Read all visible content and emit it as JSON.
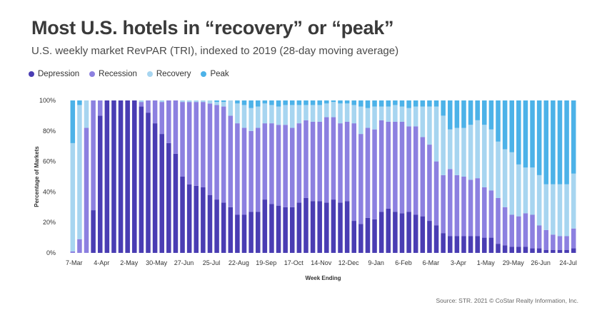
{
  "header": {
    "title": "Most U.S. hotels in “recovery” or “peak”",
    "subtitle": "U.S. weekly market RevPAR (TRI), indexed to 2019 (28-day moving average)"
  },
  "footer": {
    "source": "Source: STR. 2021 © CoStar Realty Information, Inc."
  },
  "colors": {
    "Depression": "#4a3db3",
    "Recession": "#8c80e0",
    "Recovery": "#a7d5f0",
    "Peak": "#4cb2e8"
  },
  "chart_data": {
    "type": "bar",
    "stacked": true,
    "title": "Most U.S. hotels in “recovery” or “peak”",
    "subtitle": "U.S. weekly market RevPAR (TRI), indexed to 2019 (28-day moving average)",
    "xlabel": "Week Ending",
    "ylabel": "Percentage of Markets",
    "ylim": [
      0,
      100
    ],
    "yticks": [
      "0%",
      "20%",
      "40%",
      "60%",
      "80%",
      "100%"
    ],
    "legend_position": "top-left",
    "grid": false,
    "x_tick_labels": [
      "7-Mar",
      "4-Apr",
      "2-May",
      "30-May",
      "27-Jun",
      "25-Jul",
      "22-Aug",
      "19-Sep",
      "17-Oct",
      "14-Nov",
      "12-Dec",
      "9-Jan",
      "6-Feb",
      "6-Mar",
      "3-Apr",
      "1-May",
      "29-May",
      "26-Jun",
      "24-Jul"
    ],
    "x_tick_every": 4,
    "series": [
      {
        "name": "Depression",
        "values": [
          0,
          0,
          0,
          28,
          90,
          100,
          100,
          100,
          100,
          100,
          96,
          92,
          85,
          78,
          72,
          65,
          50,
          45,
          44,
          43,
          38,
          35,
          33,
          30,
          25,
          25,
          27,
          27,
          35,
          32,
          31,
          30,
          30,
          33,
          36,
          34,
          34,
          33,
          35,
          33,
          34,
          21,
          19,
          23,
          22,
          27,
          29,
          27,
          26,
          27,
          25,
          24,
          21,
          18,
          13,
          11,
          11,
          11,
          11,
          11,
          10,
          10,
          6,
          5,
          4,
          4,
          4,
          3,
          3,
          2,
          2,
          2,
          2,
          3
        ],
        "cumulative": [
          0,
          0,
          0,
          28,
          90,
          100,
          100,
          100,
          100,
          100,
          96,
          92,
          85,
          78,
          72,
          65,
          50,
          45,
          44,
          43,
          38,
          35,
          33,
          30,
          25,
          25,
          27,
          27,
          35,
          32,
          31,
          30,
          30,
          33,
          36,
          34,
          34,
          33,
          35,
          33,
          34,
          21,
          19,
          23,
          22,
          27,
          29,
          27,
          26,
          27,
          25,
          24,
          21,
          18,
          13,
          11,
          11,
          11,
          11,
          11,
          10,
          10,
          6,
          5,
          4,
          4,
          4,
          3,
          3,
          2,
          2,
          2,
          2,
          3
        ]
      },
      {
        "name": "Recession",
        "values": [
          1,
          9,
          82,
          72,
          10,
          0,
          0,
          0,
          0,
          0,
          3,
          8,
          15,
          21,
          28,
          35,
          49,
          54,
          55,
          56,
          60,
          62,
          63,
          60,
          60,
          57,
          53,
          55,
          50,
          53,
          53,
          54,
          52,
          52,
          51,
          52,
          52,
          56,
          54,
          52,
          52,
          64,
          59,
          59,
          59,
          60,
          57,
          59,
          60,
          56,
          58,
          52,
          50,
          42,
          38,
          44,
          40,
          39,
          37,
          38,
          33,
          31,
          30,
          25,
          21,
          20,
          22,
          22,
          15,
          13,
          10,
          9,
          9,
          13
        ],
        "cumulative": [
          1,
          9,
          82,
          100,
          100,
          100,
          100,
          100,
          100,
          100,
          99,
          100,
          100,
          99,
          100,
          100,
          99,
          99,
          99,
          99,
          98,
          97,
          96,
          90,
          85,
          82,
          80,
          82,
          85,
          85,
          84,
          84,
          82,
          85,
          87,
          86,
          86,
          89,
          89,
          85,
          86,
          85,
          78,
          82,
          81,
          87,
          86,
          86,
          86,
          83,
          83,
          76,
          71,
          60,
          51,
          55,
          51,
          50,
          48,
          49,
          43,
          41,
          36,
          30,
          25,
          24,
          26,
          25,
          18,
          15,
          12,
          11,
          11,
          16
        ]
      },
      {
        "name": "Recovery",
        "values": [
          71,
          88,
          18,
          0,
          0,
          0,
          0,
          0,
          0,
          0,
          1,
          0,
          0,
          1,
          0,
          0,
          1,
          1,
          1,
          1,
          2,
          2,
          3,
          10,
          13,
          15,
          15,
          14,
          13,
          12,
          12,
          13,
          15,
          12,
          10,
          11,
          11,
          9,
          10,
          13,
          12,
          12,
          18,
          13,
          15,
          9,
          10,
          11,
          10,
          12,
          13,
          20,
          25,
          36,
          39,
          26,
          31,
          32,
          36,
          38,
          41,
          40,
          37,
          38,
          41,
          34,
          30,
          31,
          33,
          30,
          33,
          34,
          34,
          36
        ],
        "cumulative": [
          72,
          97,
          100,
          100,
          100,
          100,
          100,
          100,
          100,
          100,
          100,
          100,
          100,
          100,
          100,
          100,
          100,
          100,
          100,
          100,
          100,
          99,
          99,
          100,
          98,
          97,
          95,
          96,
          98,
          97,
          96,
          97,
          97,
          97,
          97,
          97,
          97,
          98,
          99,
          98,
          98,
          97,
          96,
          95,
          96,
          96,
          96,
          97,
          96,
          95,
          96,
          96,
          96,
          96,
          90,
          81,
          82,
          82,
          84,
          87,
          84,
          81,
          73,
          68,
          66,
          58,
          56,
          56,
          51,
          45,
          45,
          45,
          45,
          52
        ]
      },
      {
        "name": "Peak",
        "values": [
          28,
          3,
          0,
          0,
          0,
          0,
          0,
          0,
          0,
          0,
          0,
          0,
          0,
          0,
          0,
          0,
          0,
          0,
          0,
          0,
          0,
          1,
          1,
          0,
          2,
          3,
          5,
          4,
          2,
          3,
          4,
          3,
          3,
          3,
          3,
          3,
          3,
          2,
          1,
          2,
          2,
          3,
          4,
          5,
          4,
          4,
          4,
          3,
          4,
          5,
          4,
          4,
          4,
          4,
          10,
          19,
          18,
          18,
          16,
          13,
          16,
          19,
          27,
          32,
          34,
          42,
          44,
          44,
          49,
          55,
          55,
          55,
          55,
          48
        ],
        "cumulative": [
          100,
          100,
          100,
          100,
          100,
          100,
          100,
          100,
          100,
          100,
          100,
          100,
          100,
          100,
          100,
          100,
          100,
          100,
          100,
          100,
          100,
          100,
          100,
          100,
          100,
          100,
          100,
          100,
          100,
          100,
          100,
          100,
          100,
          100,
          100,
          100,
          100,
          100,
          100,
          100,
          100,
          100,
          100,
          100,
          100,
          100,
          100,
          100,
          100,
          100,
          100,
          100,
          100,
          100,
          100,
          100,
          100,
          100,
          100,
          100,
          100,
          100,
          100,
          100,
          100,
          100,
          100,
          100,
          100,
          100,
          100,
          100,
          100,
          100
        ]
      }
    ]
  }
}
